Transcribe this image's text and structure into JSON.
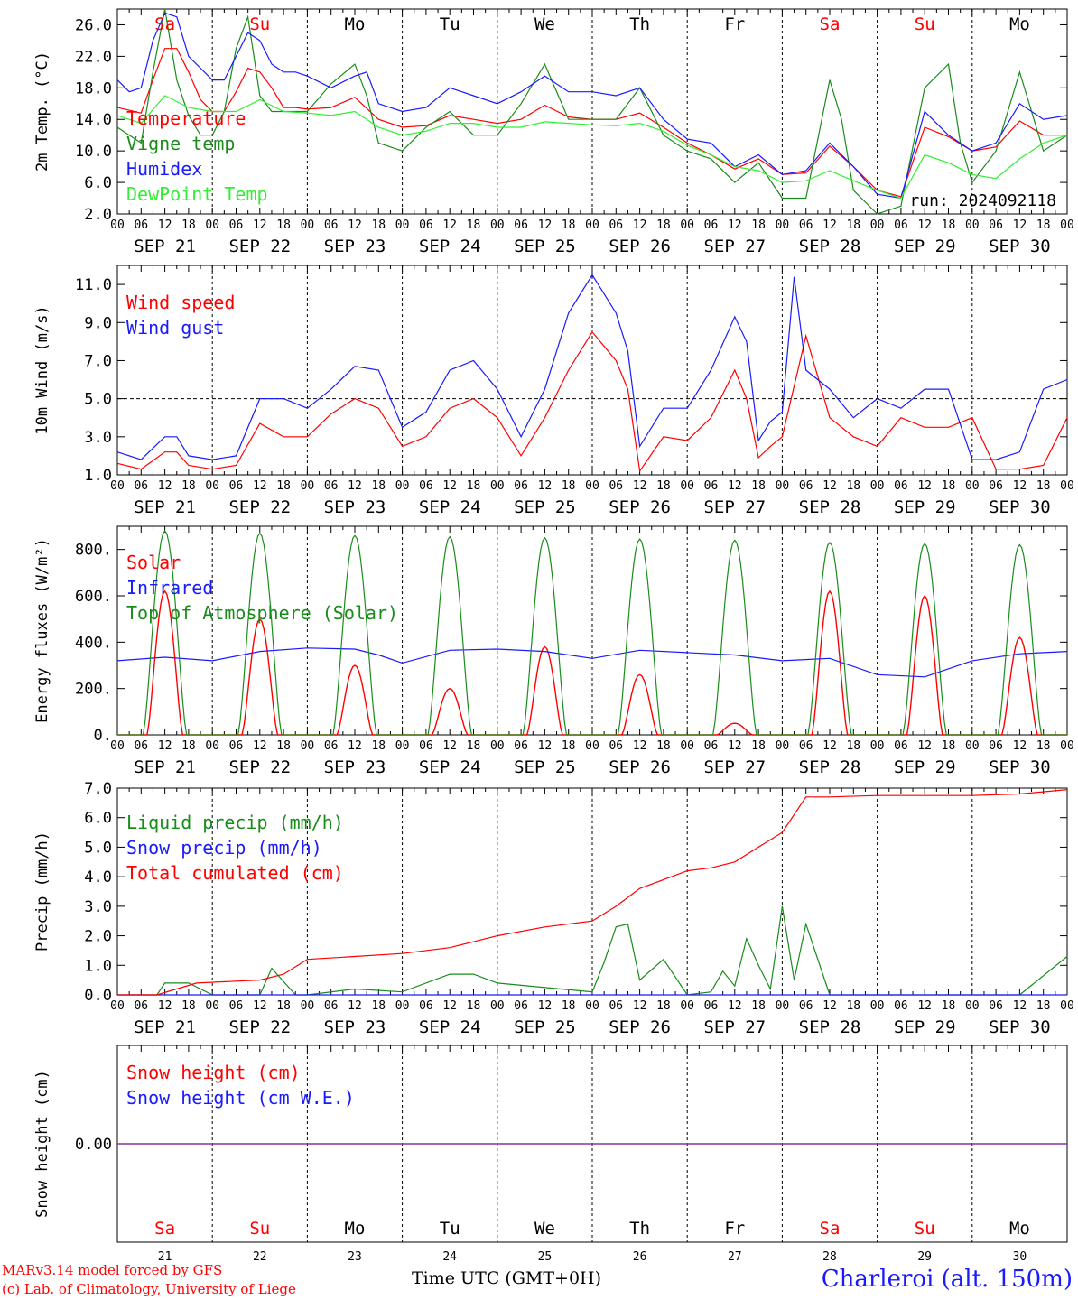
{
  "colors": {
    "red": "#ff0000",
    "blue": "#1a1aff",
    "green": "#1a8c1a",
    "lightgreen": "#33ee33",
    "purple": "#7f2f9f",
    "black": "#000000"
  },
  "footer": {
    "model": "MARv3.14 model forced by GFS",
    "copyright": "(c) Lab. of Climatology, University of Liege",
    "station": "Charleroi (alt. 150m)",
    "x_axis_title": "Time UTC (GMT+0H)"
  },
  "time_axis": {
    "hour_labels": [
      "00",
      "06",
      "12",
      "18"
    ],
    "date_labels": [
      "SEP 21",
      "SEP 22",
      "SEP 23",
      "SEP 24",
      "SEP 25",
      "SEP 26",
      "SEP 27",
      "SEP 28",
      "SEP 29",
      "SEP 30"
    ],
    "weekdays": [
      "Sa",
      "Su",
      "Mo",
      "Tu",
      "We",
      "Th",
      "Fr",
      "Sa",
      "Su",
      "Mo"
    ],
    "weekday_colors": [
      "#ff0000",
      "#ff0000",
      "#000000",
      "#000000",
      "#000000",
      "#000000",
      "#000000",
      "#ff0000",
      "#ff0000",
      "#000000"
    ],
    "day_numbers": [
      "21",
      "22",
      "23",
      "24",
      "25",
      "26",
      "27",
      "28",
      "29",
      "30"
    ],
    "x_unit": "hours since start",
    "x_range": [
      0,
      240
    ]
  },
  "chart_data": [
    {
      "type": "line",
      "ylabel": "2m Temp. (°C)",
      "ylim": [
        2,
        28
      ],
      "yticks": [
        2,
        6,
        10,
        14,
        18,
        22,
        26
      ],
      "ytick_labels": [
        "2.0",
        "6.0",
        "10.0",
        "14.0",
        "18.0",
        "22.0",
        "26.0"
      ],
      "annotation": "run: 2024092118",
      "series": [
        {
          "name": "Temperature",
          "color": "#ff0000",
          "x": [
            0,
            6,
            9,
            12,
            15,
            18,
            21,
            24,
            27,
            30,
            33,
            36,
            39,
            42,
            45,
            48,
            54,
            60,
            66,
            72,
            78,
            84,
            90,
            96,
            102,
            108,
            114,
            120,
            126,
            132,
            138,
            144,
            150,
            156,
            162,
            168,
            174,
            180,
            186,
            192,
            198,
            204,
            210,
            216,
            222,
            228,
            234,
            240
          ],
          "y": [
            15.5,
            14.8,
            19,
            23,
            23,
            20,
            16.5,
            15,
            15,
            17.5,
            20.5,
            20,
            18,
            15.5,
            15.5,
            15.3,
            15.5,
            16.8,
            14,
            13,
            13.2,
            14.5,
            14,
            13.5,
            14,
            15.8,
            14.3,
            14,
            14,
            14.8,
            13,
            11,
            9.5,
            7.7,
            9,
            7,
            7.2,
            10.6,
            8,
            5,
            4.2,
            13,
            11.8,
            10,
            10.5,
            13.8,
            12,
            12
          ]
        },
        {
          "name": "Vigne temp",
          "color": "#1a8c1a",
          "x": [
            0,
            6,
            9,
            12,
            15,
            18,
            21,
            24,
            27,
            30,
            33,
            36,
            39,
            42,
            45,
            48,
            54,
            60,
            63,
            66,
            72,
            78,
            84,
            90,
            96,
            102,
            108,
            114,
            120,
            126,
            132,
            138,
            144,
            150,
            156,
            162,
            168,
            174,
            180,
            183,
            186,
            192,
            198,
            204,
            210,
            213,
            216,
            222,
            228,
            234,
            240
          ],
          "y": [
            13,
            11,
            20,
            28,
            19,
            14.5,
            12,
            12,
            15,
            23,
            27,
            17,
            15,
            15,
            15,
            15,
            18.5,
            21,
            17,
            11,
            10,
            13,
            15,
            12,
            12,
            16,
            21,
            14,
            14,
            14,
            18,
            12,
            10,
            9,
            6,
            8.5,
            4,
            4,
            19,
            14,
            5,
            2,
            3,
            18,
            21,
            11,
            6,
            10,
            20,
            10,
            12
          ]
        },
        {
          "name": "Humidex",
          "color": "#1a1aff",
          "x": [
            0,
            3,
            6,
            9,
            12,
            15,
            18,
            21,
            24,
            27,
            30,
            33,
            36,
            39,
            42,
            45,
            48,
            54,
            60,
            63,
            66,
            72,
            78,
            84,
            90,
            96,
            102,
            108,
            114,
            120,
            126,
            132,
            138,
            144,
            150,
            156,
            162,
            168,
            174,
            180,
            186,
            192,
            198,
            204,
            210,
            216,
            222,
            228,
            234,
            240
          ],
          "y": [
            19,
            17.5,
            18,
            24,
            27.5,
            27,
            22,
            20.5,
            19,
            19,
            22,
            25,
            24,
            21,
            20,
            20,
            19.5,
            18,
            19.5,
            20,
            16,
            15,
            15.5,
            18,
            17,
            16,
            17.5,
            19.5,
            17.5,
            17.5,
            17,
            18,
            14,
            11.5,
            11,
            8,
            9.5,
            7,
            7.5,
            11,
            8,
            4.5,
            4,
            15,
            12,
            10,
            11,
            16,
            14,
            14.5
          ]
        },
        {
          "name": "DewPoint Temp",
          "color": "#33ee33",
          "x": [
            0,
            6,
            12,
            18,
            24,
            30,
            36,
            42,
            48,
            54,
            60,
            66,
            72,
            78,
            84,
            90,
            96,
            102,
            108,
            114,
            120,
            126,
            132,
            138,
            144,
            150,
            156,
            162,
            168,
            174,
            180,
            186,
            192,
            198,
            204,
            210,
            216,
            222,
            228,
            234,
            240
          ],
          "y": [
            14.5,
            13.5,
            17,
            15.5,
            15,
            15,
            16.5,
            15,
            14.8,
            14.5,
            15,
            13,
            12,
            12.5,
            13.5,
            13.5,
            13,
            13,
            13.7,
            13.5,
            13.3,
            13.2,
            13.5,
            12.5,
            10.7,
            9.5,
            8,
            7.5,
            6,
            6.2,
            7.5,
            6.2,
            5,
            4,
            9.5,
            8.5,
            7,
            6.5,
            9,
            11,
            12
          ]
        }
      ]
    },
    {
      "type": "line",
      "ylabel": "10m Wind (m/s)",
      "ylim": [
        1,
        12
      ],
      "yticks": [
        1,
        3,
        5,
        7,
        9,
        11
      ],
      "ytick_labels": [
        "1.0",
        "3.0",
        "5.0",
        "7.0",
        "9.0",
        "11.0"
      ],
      "hline": 5,
      "series": [
        {
          "name": "Wind speed",
          "color": "#ff0000",
          "x": [
            0,
            6,
            12,
            15,
            18,
            24,
            30,
            36,
            42,
            48,
            54,
            60,
            66,
            72,
            78,
            84,
            90,
            96,
            102,
            108,
            114,
            120,
            126,
            129,
            132,
            138,
            144,
            150,
            156,
            159,
            162,
            165,
            168,
            174,
            180,
            186,
            192,
            198,
            204,
            210,
            216,
            222,
            228,
            234,
            240
          ],
          "y": [
            1.6,
            1.3,
            2.2,
            2.2,
            1.5,
            1.3,
            1.5,
            3.7,
            3,
            3,
            4.2,
            5,
            4.5,
            2.5,
            3,
            4.5,
            5,
            4,
            2,
            4,
            6.5,
            8.5,
            7,
            5.5,
            1.2,
            3,
            2.8,
            4,
            6.5,
            5,
            1.9,
            2.5,
            3,
            8.3,
            4,
            3,
            2.5,
            4,
            3.5,
            3.5,
            4,
            1.3,
            1.3,
            1.5,
            4
          ]
        },
        {
          "name": "Wind gust",
          "color": "#1a1aff",
          "x": [
            0,
            6,
            12,
            15,
            18,
            24,
            30,
            36,
            42,
            48,
            54,
            60,
            66,
            72,
            78,
            84,
            90,
            96,
            102,
            108,
            114,
            120,
            126,
            129,
            132,
            138,
            144,
            150,
            156,
            159,
            162,
            165,
            168,
            171,
            174,
            180,
            186,
            192,
            198,
            204,
            210,
            216,
            222,
            228,
            234,
            240
          ],
          "y": [
            2.2,
            1.8,
            3,
            3,
            2,
            1.8,
            2,
            5,
            5,
            4.5,
            5.5,
            6.7,
            6.5,
            3.5,
            4.3,
            6.5,
            7,
            5.5,
            3,
            5.5,
            9.5,
            11.5,
            9.5,
            7.5,
            2.5,
            4.5,
            4.5,
            6.5,
            9.3,
            8,
            2.8,
            3.8,
            4.3,
            11.4,
            6.5,
            5.5,
            4,
            5,
            4.5,
            5.5,
            5.5,
            1.8,
            1.8,
            2.2,
            5.5,
            6
          ]
        }
      ]
    },
    {
      "type": "line",
      "ylabel": "Energy fluxes (W/m²)",
      "ylim": [
        0,
        900
      ],
      "yticks": [
        0,
        200,
        400,
        600,
        800
      ],
      "ytick_labels": [
        "0.",
        "200.",
        "400.",
        "600.",
        "800."
      ],
      "series": [
        {
          "name": "Solar",
          "color": "#ff0000",
          "type": "diurnal",
          "daily_peaks": [
            620,
            500,
            300,
            200,
            380,
            260,
            50,
            620,
            600,
            420
          ]
        },
        {
          "name": "Infrared",
          "color": "#1a1aff",
          "x": [
            0,
            12,
            24,
            36,
            48,
            60,
            66,
            72,
            84,
            96,
            108,
            120,
            132,
            144,
            156,
            168,
            180,
            192,
            204,
            216,
            228,
            240
          ],
          "y": [
            320,
            335,
            320,
            360,
            375,
            370,
            345,
            310,
            365,
            370,
            360,
            330,
            365,
            355,
            345,
            320,
            330,
            260,
            250,
            320,
            350,
            360
          ]
        },
        {
          "name": "Top of Atmosphere (Solar)",
          "color": "#1a8c1a",
          "type": "diurnal",
          "daily_peaks": [
            880,
            870,
            860,
            855,
            850,
            845,
            840,
            830,
            825,
            820
          ]
        }
      ]
    },
    {
      "type": "line",
      "ylabel": "Precip (mm/h)",
      "ylim": [
        0,
        7
      ],
      "yticks": [
        0,
        1,
        2,
        3,
        4,
        5,
        6,
        7
      ],
      "ytick_labels": [
        "0.0",
        "1.0",
        "2.0",
        "3.0",
        "4.0",
        "5.0",
        "6.0",
        "7.0"
      ],
      "series": [
        {
          "name": "Liquid precip (mm/h)",
          "color": "#1a8c1a",
          "x": [
            0,
            10,
            12,
            18,
            24,
            36,
            39,
            45,
            48,
            60,
            72,
            84,
            90,
            96,
            120,
            123,
            126,
            129,
            132,
            138,
            144,
            150,
            153,
            156,
            159,
            162,
            165,
            168,
            171,
            174,
            180,
            186,
            216,
            228,
            240
          ],
          "y": [
            0,
            0,
            0.4,
            0.4,
            0,
            0,
            0.9,
            0,
            0,
            0.2,
            0.1,
            0.7,
            0.7,
            0.4,
            0.1,
            1.1,
            2.3,
            2.4,
            0.5,
            1.2,
            0,
            0.1,
            0.8,
            0.3,
            1.9,
            1,
            0.2,
            3,
            0.5,
            2.4,
            0,
            0,
            0,
            0,
            1.3
          ]
        },
        {
          "name": "Snow precip (mm/h)",
          "color": "#1a1aff",
          "x": [
            0,
            240
          ],
          "y": [
            0,
            0
          ]
        },
        {
          "name": "Total cumulated (cm)",
          "color": "#ff0000",
          "x": [
            0,
            10,
            20,
            36,
            42,
            48,
            60,
            72,
            84,
            96,
            108,
            120,
            126,
            132,
            138,
            144,
            150,
            156,
            162,
            168,
            174,
            180,
            192,
            204,
            216,
            228,
            240
          ],
          "y": [
            0,
            0,
            0.4,
            0.5,
            0.7,
            1.2,
            1.3,
            1.4,
            1.6,
            2.0,
            2.3,
            2.5,
            3.0,
            3.6,
            3.9,
            4.2,
            4.3,
            4.5,
            5.0,
            5.5,
            6.7,
            6.7,
            6.75,
            6.75,
            6.75,
            6.8,
            6.95
          ]
        }
      ]
    },
    {
      "type": "line",
      "ylabel": "Snow height (cm)",
      "ylim": [
        -1,
        1
      ],
      "yticks": [
        0
      ],
      "ytick_labels": [
        "0.00"
      ],
      "series": [
        {
          "name": "Snow height (cm)",
          "color": "#ff0000",
          "x": [
            0,
            240
          ],
          "y": [
            0,
            0
          ]
        },
        {
          "name": "Snow height (cm W.E.)",
          "color": "#1a1aff",
          "x": [
            0,
            240
          ],
          "y": [
            0,
            0
          ]
        }
      ]
    }
  ]
}
